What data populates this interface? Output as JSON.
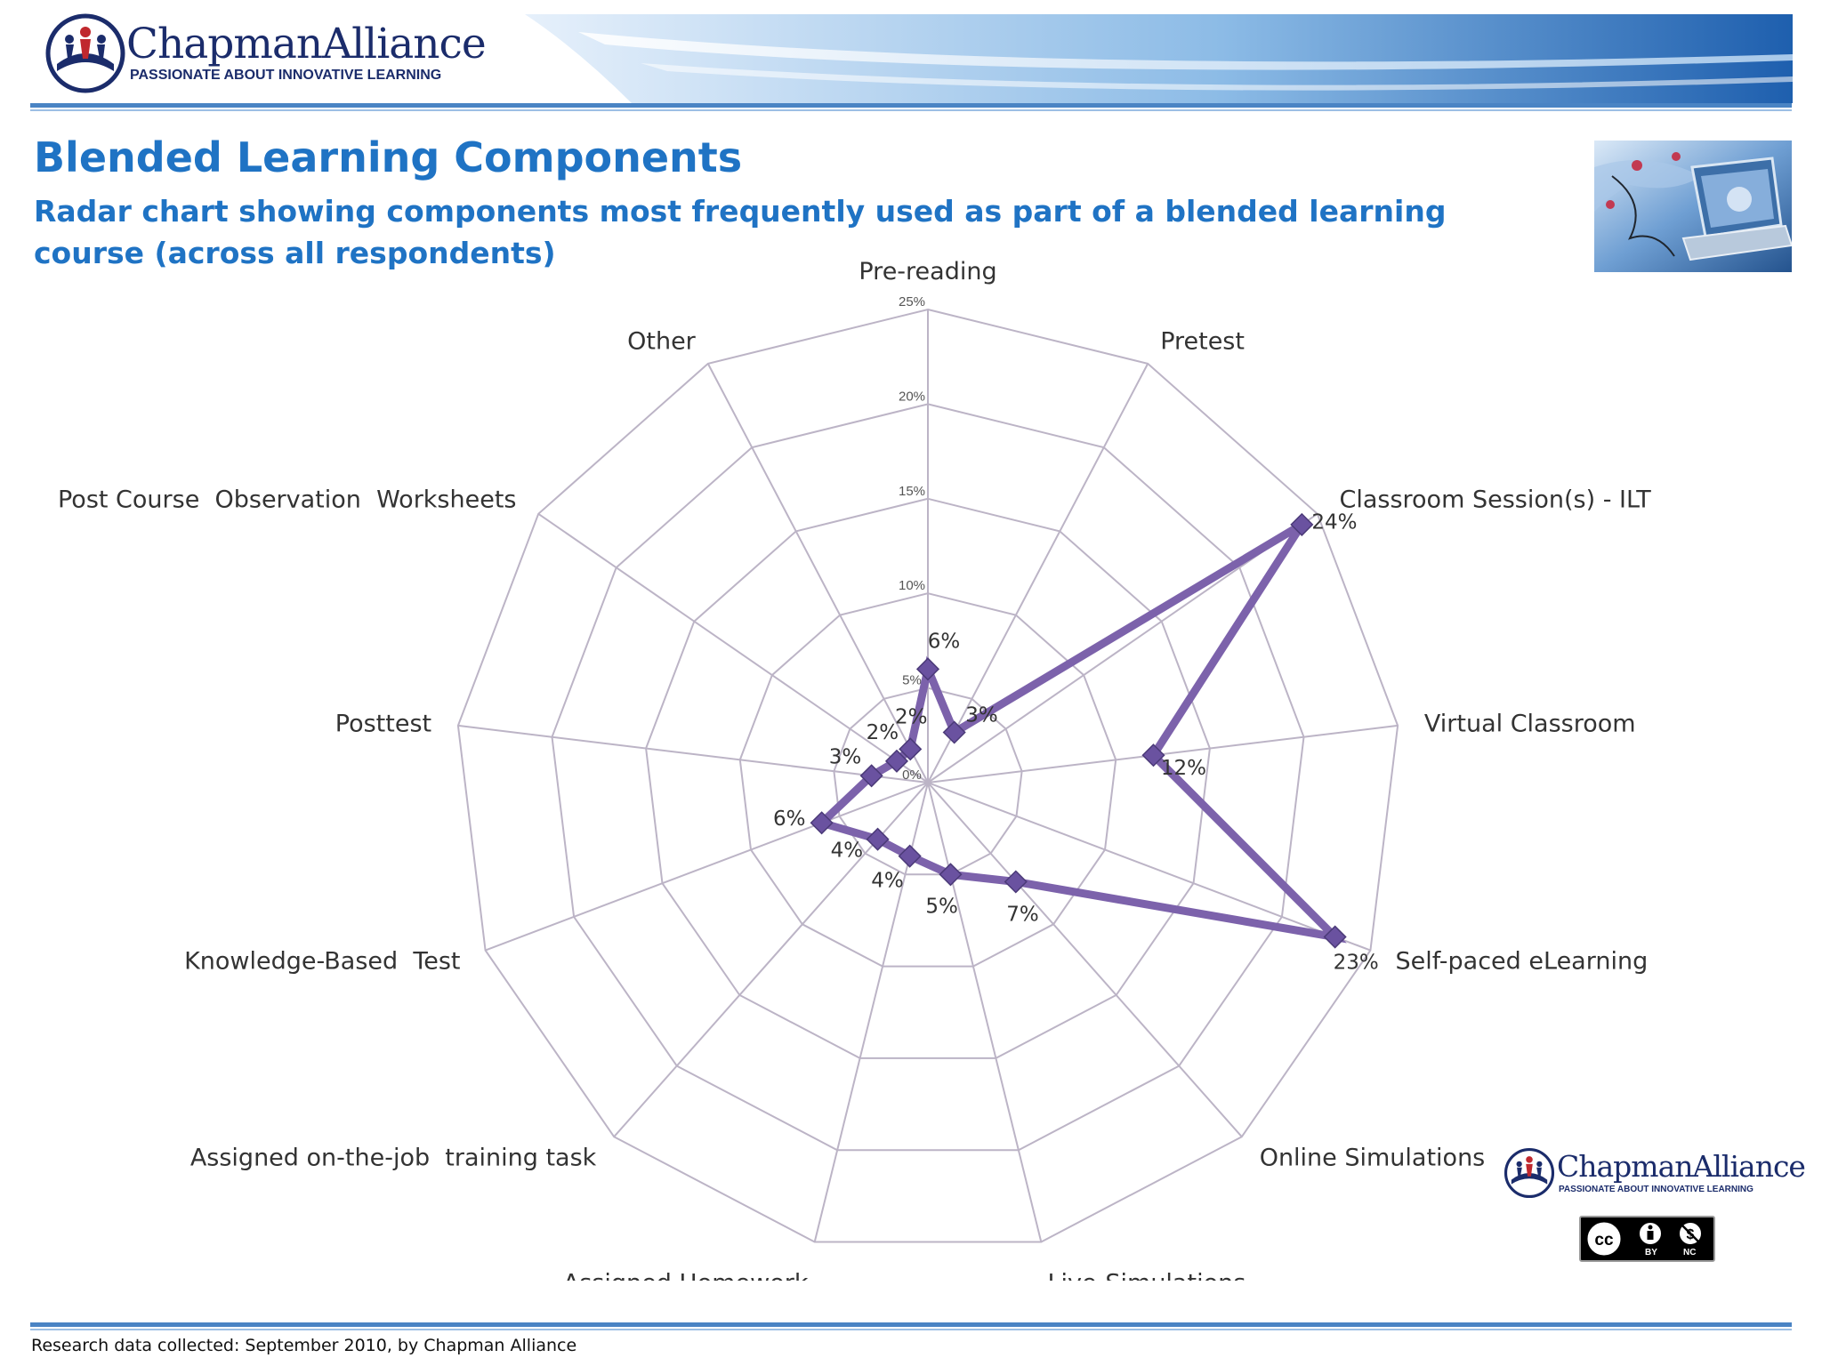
{
  "header": {
    "brand_name": "ChapmanAlliance",
    "brand_tagline": "PASSIONATE ABOUT INNOVATIVE LEARNING"
  },
  "slide": {
    "title": "Blended Learning Components",
    "subtitle": "Radar chart showing components most frequently used as part of a blended learning course (across all respondents)"
  },
  "colors": {
    "title": "#1f73c4",
    "brand": "#1b2c6b",
    "rule": "#4a84c4",
    "series": "#7c62ab",
    "grid": "#bcb4c6"
  },
  "chart_data": {
    "type": "radar",
    "categories": [
      "Pre-reading",
      "Pretest",
      "Classroom Session(s) - ILT",
      "Virtual Classroom",
      "Self-paced eLearning",
      "Online Simulations",
      "Live-Simulations",
      "Assigned Homework",
      "Assigned on-the-job  training task",
      "Knowledge-Based  Test",
      "Posttest",
      "Post Course  Observation  Worksheets",
      "Other"
    ],
    "values": [
      6,
      3,
      24,
      12,
      23,
      7,
      5,
      4,
      4,
      6,
      3,
      2,
      2
    ],
    "data_labels": [
      "6%",
      "3%",
      "24%",
      "12%",
      "23%",
      "7%",
      "5%",
      "4%",
      "4%",
      "6%",
      "3%",
      "2%",
      "2%"
    ],
    "r_ticks": [
      "0%",
      "5%",
      "10%",
      "15%",
      "20%",
      "25%"
    ],
    "r_range": [
      0,
      25
    ],
    "marker": "diamond",
    "grid": true,
    "legend": false
  },
  "footer": {
    "source": "Research data collected: September 2010, by Chapman Alliance",
    "brand_name": "ChapmanAlliance",
    "brand_tagline": "PASSIONATE ABOUT INNOVATIVE LEARNING",
    "license": {
      "icons": [
        "creative-commons-icon",
        "attribution-icon",
        "noncommercial-icon"
      ],
      "by": "BY",
      "nc": "NC"
    }
  }
}
